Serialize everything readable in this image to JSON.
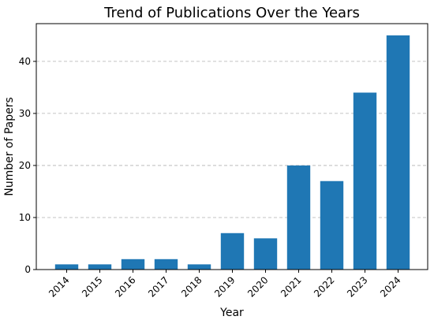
{
  "chart_data": {
    "type": "bar",
    "title": "Trend of Publications Over the Years",
    "xlabel": "Year",
    "ylabel": "Number of Papers",
    "categories": [
      "2014",
      "2015",
      "2016",
      "2017",
      "2018",
      "2019",
      "2020",
      "2021",
      "2022",
      "2023",
      "2024"
    ],
    "values": [
      1,
      1,
      2,
      2,
      1,
      7,
      6,
      20,
      17,
      34,
      45
    ],
    "ylim": [
      0,
      47.25
    ],
    "yticks": [
      0,
      10,
      20,
      30,
      40
    ],
    "grid": "y-dashed",
    "bar_color": "#1f77b4",
    "grid_color": "#b0b0b0",
    "tick_rotation_deg": 45
  }
}
